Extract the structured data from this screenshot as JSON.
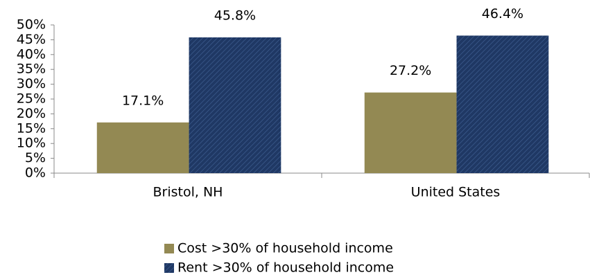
{
  "chart_data": {
    "type": "bar",
    "categories": [
      "Bristol, NH",
      "United States"
    ],
    "series": [
      {
        "name": "Cost >30% of household income",
        "color": "#938953",
        "values": [
          17.1,
          27.2
        ],
        "value_labels": [
          "17.1%",
          "27.2%"
        ]
      },
      {
        "name": "Rent >30% of household income",
        "color": "#1f3864",
        "hatch": true,
        "values": [
          45.8,
          46.4
        ],
        "value_labels": [
          "45.8%",
          "46.4%"
        ]
      }
    ],
    "ylim": [
      0,
      50
    ],
    "yticks": [
      {
        "value": 0,
        "label": "0%"
      },
      {
        "value": 5,
        "label": "5%"
      },
      {
        "value": 10,
        "label": "10%"
      },
      {
        "value": 15,
        "label": "15%"
      },
      {
        "value": 20,
        "label": "20%"
      },
      {
        "value": 25,
        "label": "25%"
      },
      {
        "value": 30,
        "label": "30%"
      },
      {
        "value": 35,
        "label": "35%"
      },
      {
        "value": 40,
        "label": "40%"
      },
      {
        "value": 45,
        "label": "45%"
      },
      {
        "value": 50,
        "label": "50%"
      }
    ],
    "legend": "bottom"
  }
}
